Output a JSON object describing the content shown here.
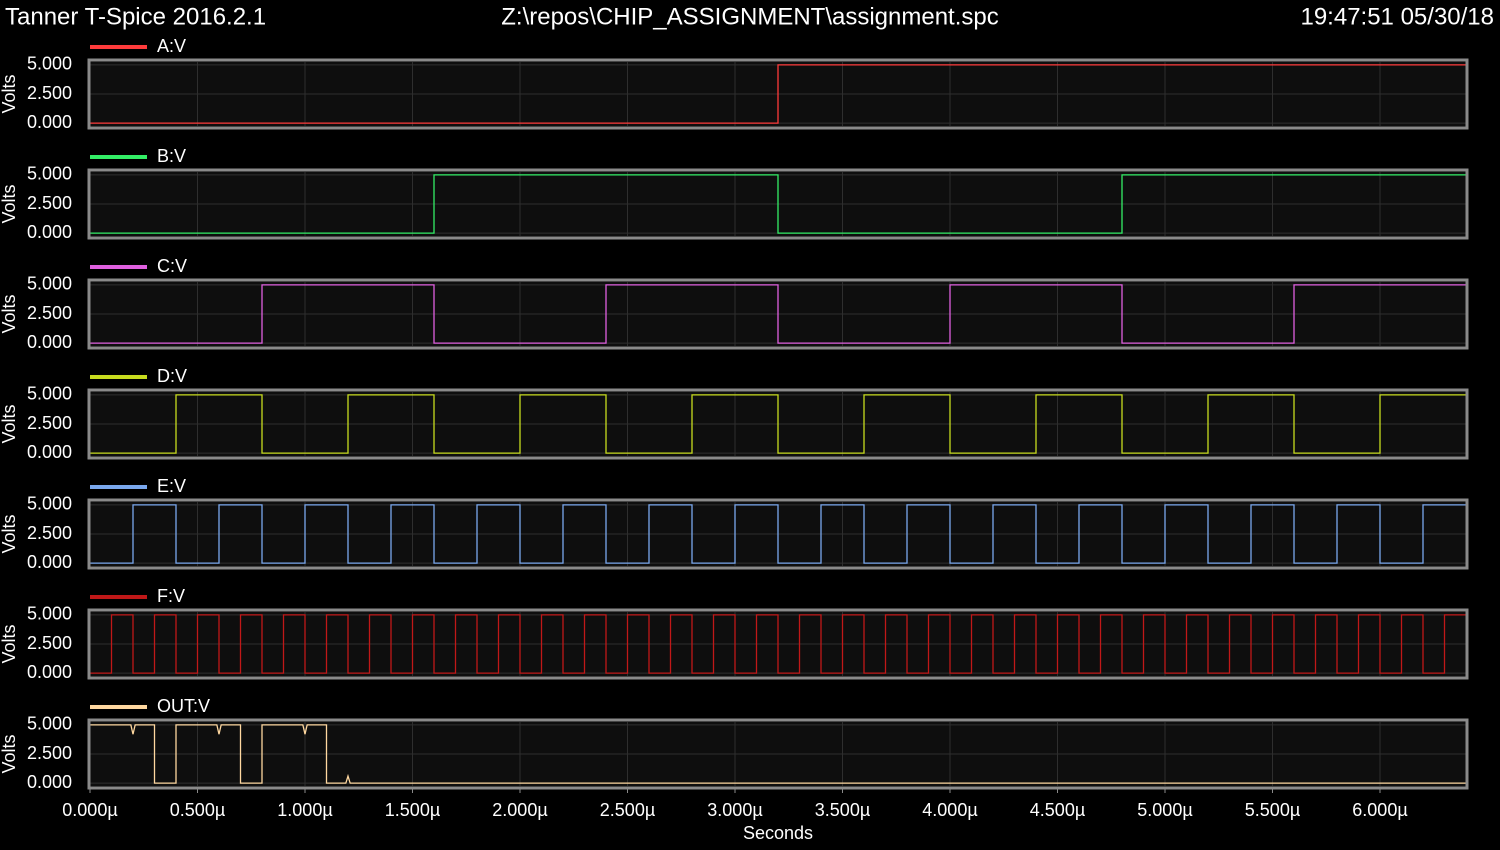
{
  "header": {
    "title": "Tanner T-Spice 2016.2.1",
    "file": "Z:\\repos\\CHIP_ASSIGNMENT\\assignment.spc",
    "timestamp": "19:47:51 05/30/18"
  },
  "chart_data": [
    {
      "type": "line",
      "ylabel": "Volts",
      "ylim": [
        -0.25,
        5.25
      ],
      "yticks": [
        {
          "value": 0,
          "label": "0.000"
        },
        {
          "value": 2.5,
          "label": "2.500"
        },
        {
          "value": 5,
          "label": "5.000"
        }
      ],
      "xlim": [
        0,
        6.4
      ],
      "grid": true,
      "series": [
        {
          "name": "A:V",
          "color": "#ff3b3b",
          "x": [
            0,
            3.2,
            3.2,
            6.4
          ],
          "values": [
            0,
            0,
            5,
            5
          ]
        }
      ]
    },
    {
      "type": "line",
      "ylabel": "Volts",
      "ylim": [
        -0.25,
        5.25
      ],
      "yticks": [
        {
          "value": 0,
          "label": "0.000"
        },
        {
          "value": 2.5,
          "label": "2.500"
        },
        {
          "value": 5,
          "label": "5.000"
        }
      ],
      "xlim": [
        0,
        6.4
      ],
      "grid": true,
      "series": [
        {
          "name": "B:V",
          "color": "#33ee66",
          "x": [
            0,
            1.6,
            1.6,
            3.2,
            3.2,
            4.8,
            4.8,
            6.4
          ],
          "values": [
            0,
            0,
            5,
            5,
            0,
            0,
            5,
            5
          ]
        }
      ]
    },
    {
      "type": "line",
      "ylabel": "Volts",
      "ylim": [
        -0.25,
        5.25
      ],
      "yticks": [
        {
          "value": 0,
          "label": "0.000"
        },
        {
          "value": 2.5,
          "label": "2.500"
        },
        {
          "value": 5,
          "label": "5.000"
        }
      ],
      "xlim": [
        0,
        6.4
      ],
      "grid": true,
      "series": [
        {
          "name": "C:V",
          "color": "#e060e0",
          "x": [
            0,
            0.8,
            0.8,
            1.6,
            1.6,
            2.4,
            2.4,
            3.2,
            3.2,
            4.0,
            4.0,
            4.8,
            4.8,
            5.6,
            5.6,
            6.4
          ],
          "values": [
            0,
            0,
            5,
            5,
            0,
            0,
            5,
            5,
            0,
            0,
            5,
            5,
            0,
            0,
            5,
            5
          ]
        }
      ]
    },
    {
      "type": "line",
      "ylabel": "Volts",
      "ylim": [
        -0.25,
        5.25
      ],
      "yticks": [
        {
          "value": 0,
          "label": "0.000"
        },
        {
          "value": 2.5,
          "label": "2.500"
        },
        {
          "value": 5,
          "label": "5.000"
        }
      ],
      "xlim": [
        0,
        6.4
      ],
      "grid": true,
      "series": [
        {
          "name": "D:V",
          "color": "#c8dc1e",
          "x": [
            0,
            0.4,
            0.4,
            0.8,
            0.8,
            1.2,
            1.2,
            1.6,
            1.6,
            2.0,
            2.0,
            2.4,
            2.4,
            2.8,
            2.8,
            3.2,
            3.2,
            3.6,
            3.6,
            4.0,
            4.0,
            4.4,
            4.4,
            4.8,
            4.8,
            5.2,
            5.2,
            5.6,
            5.6,
            6.0,
            6.0,
            6.4
          ],
          "values": [
            0,
            0,
            5,
            5,
            0,
            0,
            5,
            5,
            0,
            0,
            5,
            5,
            0,
            0,
            5,
            5,
            0,
            0,
            5,
            5,
            0,
            0,
            5,
            5,
            0,
            0,
            5,
            5,
            0,
            0,
            5,
            5
          ]
        }
      ]
    },
    {
      "type": "line",
      "ylabel": "Volts",
      "ylim": [
        -0.25,
        5.25
      ],
      "yticks": [
        {
          "value": 0,
          "label": "0.000"
        },
        {
          "value": 2.5,
          "label": "2.500"
        },
        {
          "value": 5,
          "label": "5.000"
        }
      ],
      "xlim": [
        0,
        6.4
      ],
      "grid": true,
      "series": [
        {
          "name": "E:V",
          "color": "#7aa8ee",
          "x": [
            0,
            0.2,
            0.2,
            0.4,
            0.4,
            0.6,
            0.6,
            0.8,
            0.8,
            1.0,
            1.0,
            1.2,
            1.2,
            1.4,
            1.4,
            1.6,
            1.6,
            1.8,
            1.8,
            2.0,
            2.0,
            2.2,
            2.2,
            2.4,
            2.4,
            2.6,
            2.6,
            2.8,
            2.8,
            3.0,
            3.0,
            3.2,
            3.2,
            3.4,
            3.4,
            3.6,
            3.6,
            3.8,
            3.8,
            4.0,
            4.0,
            4.2,
            4.2,
            4.4,
            4.4,
            4.6,
            4.6,
            4.8,
            4.8,
            5.0,
            5.0,
            5.2,
            5.2,
            5.4,
            5.4,
            5.6,
            5.6,
            5.8,
            5.8,
            6.0,
            6.0,
            6.2,
            6.2,
            6.4
          ],
          "values": [
            0,
            0,
            5,
            5,
            0,
            0,
            5,
            5,
            0,
            0,
            5,
            5,
            0,
            0,
            5,
            5,
            0,
            0,
            5,
            5,
            0,
            0,
            5,
            5,
            0,
            0,
            5,
            5,
            0,
            0,
            5,
            5,
            0,
            0,
            5,
            5,
            0,
            0,
            5,
            5,
            0,
            0,
            5,
            5,
            0,
            0,
            5,
            5,
            0,
            0,
            5,
            5,
            0,
            0,
            5,
            5,
            0,
            0,
            5,
            5,
            0,
            0,
            5,
            5
          ]
        }
      ]
    },
    {
      "type": "line",
      "ylabel": "Volts",
      "ylim": [
        -0.25,
        5.25
      ],
      "yticks": [
        {
          "value": 0,
          "label": "0.000"
        },
        {
          "value": 2.5,
          "label": "2.500"
        },
        {
          "value": 5,
          "label": "5.000"
        }
      ],
      "xlim": [
        0,
        6.4
      ],
      "grid": true,
      "series": [
        {
          "name": "F:V",
          "color": "#c01818",
          "x": [
            0,
            0.1,
            0.1,
            0.2,
            0.2,
            0.3,
            0.3,
            0.4,
            0.4,
            0.5,
            0.5,
            0.6,
            0.6,
            0.7,
            0.7,
            0.8,
            0.8,
            0.9,
            0.9,
            1.0,
            1.0,
            1.1,
            1.1,
            1.2,
            1.2,
            1.3,
            1.3,
            1.4,
            1.4,
            1.5,
            1.5,
            1.6,
            1.6,
            1.7,
            1.7,
            1.8,
            1.8,
            1.9,
            1.9,
            2.0,
            2.0,
            2.1,
            2.1,
            2.2,
            2.2,
            2.3,
            2.3,
            2.4,
            2.4,
            2.5,
            2.5,
            2.6,
            2.6,
            2.7,
            2.7,
            2.8,
            2.8,
            2.9,
            2.9,
            3.0,
            3.0,
            3.1,
            3.1,
            3.2,
            3.2,
            3.3,
            3.3,
            3.4,
            3.4,
            3.5,
            3.5,
            3.6,
            3.6,
            3.7,
            3.7,
            3.8,
            3.8,
            3.9,
            3.9,
            4.0,
            4.0,
            4.1,
            4.1,
            4.2,
            4.2,
            4.3,
            4.3,
            4.4,
            4.4,
            4.5,
            4.5,
            4.6,
            4.6,
            4.7,
            4.7,
            4.8,
            4.8,
            4.9,
            4.9,
            5.0,
            5.0,
            5.1,
            5.1,
            5.2,
            5.2,
            5.3,
            5.3,
            5.4,
            5.4,
            5.5,
            5.5,
            5.6,
            5.6,
            5.7,
            5.7,
            5.8,
            5.8,
            5.9,
            5.9,
            6.0,
            6.0,
            6.1,
            6.1,
            6.2,
            6.2,
            6.3,
            6.3,
            6.4
          ],
          "values": [
            0,
            0,
            5,
            5,
            0,
            0,
            5,
            5,
            0,
            0,
            5,
            5,
            0,
            0,
            5,
            5,
            0,
            0,
            5,
            5,
            0,
            0,
            5,
            5,
            0,
            0,
            5,
            5,
            0,
            0,
            5,
            5,
            0,
            0,
            5,
            5,
            0,
            0,
            5,
            5,
            0,
            0,
            5,
            5,
            0,
            0,
            5,
            5,
            0,
            0,
            5,
            5,
            0,
            0,
            5,
            5,
            0,
            0,
            5,
            5,
            0,
            0,
            5,
            5,
            0,
            0,
            5,
            5,
            0,
            0,
            5,
            5,
            0,
            0,
            5,
            5,
            0,
            0,
            5,
            5,
            0,
            0,
            5,
            5,
            0,
            0,
            5,
            5,
            0,
            0,
            5,
            5,
            0,
            0,
            5,
            5,
            0,
            0,
            5,
            5,
            0,
            0,
            5,
            5,
            0,
            0,
            5,
            5,
            0,
            0,
            5,
            5,
            0,
            0,
            5,
            5,
            0,
            0,
            5,
            5,
            0,
            0,
            5,
            5,
            0,
            0,
            5,
            5
          ]
        }
      ]
    },
    {
      "type": "line",
      "ylabel": "Volts",
      "xlabel": "Seconds",
      "ylim": [
        -0.25,
        5.25
      ],
      "yticks": [
        {
          "value": 0,
          "label": "0.000"
        },
        {
          "value": 2.5,
          "label": "2.500"
        },
        {
          "value": 5,
          "label": "5.000"
        }
      ],
      "xlim": [
        0,
        6.4
      ],
      "grid": true,
      "xticks": [
        {
          "value": 0,
          "label": "0.000µ"
        },
        {
          "value": 0.5,
          "label": "0.500µ"
        },
        {
          "value": 1,
          "label": "1.000µ"
        },
        {
          "value": 1.5,
          "label": "1.500µ"
        },
        {
          "value": 2,
          "label": "2.000µ"
        },
        {
          "value": 2.5,
          "label": "2.500µ"
        },
        {
          "value": 3,
          "label": "3.000µ"
        },
        {
          "value": 3.5,
          "label": "3.500µ"
        },
        {
          "value": 4,
          "label": "4.000µ"
        },
        {
          "value": 4.5,
          "label": "4.500µ"
        },
        {
          "value": 5,
          "label": "5.000µ"
        },
        {
          "value": 5.5,
          "label": "5.500µ"
        },
        {
          "value": 6,
          "label": "6.000µ"
        }
      ],
      "series": [
        {
          "name": "OUT:V",
          "color": "#ffd8a0",
          "x": [
            0,
            0.19,
            0.2,
            0.21,
            0.3,
            0.3,
            0.4,
            0.4,
            0.59,
            0.6,
            0.61,
            0.7,
            0.7,
            0.8,
            0.8,
            0.99,
            1.0,
            1.01,
            1.1,
            1.1,
            1.19,
            1.2,
            1.21,
            6.4
          ],
          "values": [
            5,
            5,
            4.2,
            5,
            5,
            0,
            0,
            5,
            5,
            4.2,
            5,
            5,
            0,
            0,
            5,
            5,
            4.2,
            5,
            5,
            0,
            0,
            0.6,
            0,
            0
          ]
        }
      ]
    }
  ]
}
